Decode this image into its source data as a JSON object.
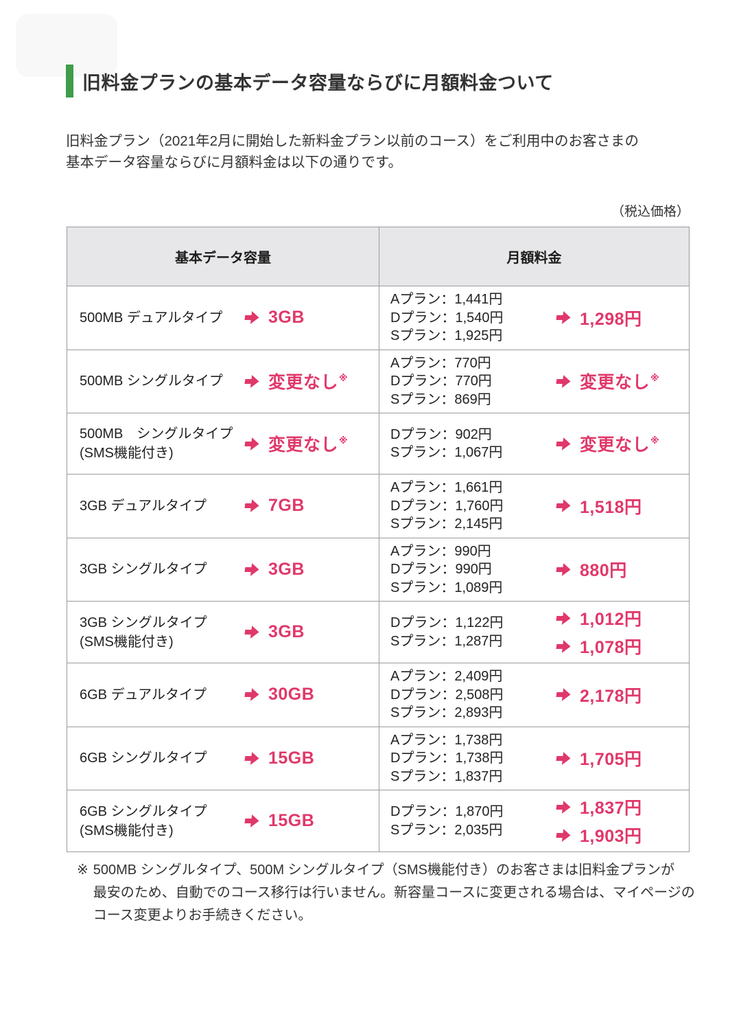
{
  "header": {
    "title": "旧料金プランの基本データ容量ならびに月額料金ついて",
    "accent_bar_color": "#3f9d49"
  },
  "intro": {
    "lines": [
      "旧料金プラン（2021年2月に開始した新料金プラン以前のコース）をご利用中のお客さまの",
      "基本データ容量ならびに月額料金は以下の通りです。"
    ]
  },
  "table": {
    "tax_note": "（税込価格）",
    "accent_color": "#e0386a",
    "headers": [
      "基本データ容量",
      "月額料金"
    ],
    "rows": [
      {
        "plan": [
          "500MB デュアルタイプ"
        ],
        "capacity_new": "3GB",
        "fees": [
          "Aプラン：1,441円",
          "Dプラン：1,540円",
          "Sプラン：1,925円"
        ],
        "fee_new": [
          "1,298円"
        ]
      },
      {
        "plan": [
          "500MB シングルタイプ"
        ],
        "capacity_new": "変更なし※",
        "fees": [
          "Aプラン：770円",
          "Dプラン：770円",
          "Sプラン：869円"
        ],
        "fee_new": [
          "変更なし※"
        ]
      },
      {
        "plan": [
          "500MB　シングルタイプ",
          "(SMS機能付き)"
        ],
        "capacity_new": "変更なし※",
        "fees": [
          "Dプラン：902円",
          "Sプラン：1,067円"
        ],
        "fee_new": [
          "変更なし※"
        ]
      },
      {
        "plan": [
          "3GB デュアルタイプ"
        ],
        "capacity_new": "7GB",
        "fees": [
          "Aプラン：1,661円",
          "Dプラン：1,760円",
          "Sプラン：2,145円"
        ],
        "fee_new": [
          "1,518円"
        ]
      },
      {
        "plan": [
          "3GB シングルタイプ"
        ],
        "capacity_new": "3GB",
        "fees": [
          "Aプラン：990円",
          "Dプラン：990円",
          "Sプラン：1,089円"
        ],
        "fee_new": [
          "880円"
        ]
      },
      {
        "plan": [
          "3GB シングルタイプ",
          "(SMS機能付き)"
        ],
        "capacity_new": "3GB",
        "fees": [
          "Dプラン：1,122円",
          "Sプラン：1,287円"
        ],
        "fee_new": [
          "1,012円",
          "1,078円"
        ]
      },
      {
        "plan": [
          "6GB デュアルタイプ"
        ],
        "capacity_new": "30GB",
        "fees": [
          "Aプラン：2,409円",
          "Dプラン：2,508円",
          "Sプラン：2,893円"
        ],
        "fee_new": [
          "2,178円"
        ]
      },
      {
        "plan": [
          "6GB シングルタイプ"
        ],
        "capacity_new": "15GB",
        "fees": [
          "Aプラン：1,738円",
          "Dプラン：1,738円",
          "Sプラン：1,837円"
        ],
        "fee_new": [
          "1,705円"
        ]
      },
      {
        "plan": [
          "6GB シングルタイプ",
          "(SMS機能付き)"
        ],
        "capacity_new": "15GB",
        "fees": [
          "Dプラン：1,870円",
          "Sプラン：2,035円"
        ],
        "fee_new": [
          "1,837円",
          "1,903円"
        ]
      }
    ]
  },
  "footnote": {
    "marker": "※",
    "lines": [
      "500MB シングルタイプ、500M シングルタイプ（SMS機能付き）のお客さまは旧料金プランが",
      "最安のため、自動でのコース移行は行いません。新容量コースに変更される場合は、マイページの",
      "コース変更よりお手続きください。"
    ]
  }
}
